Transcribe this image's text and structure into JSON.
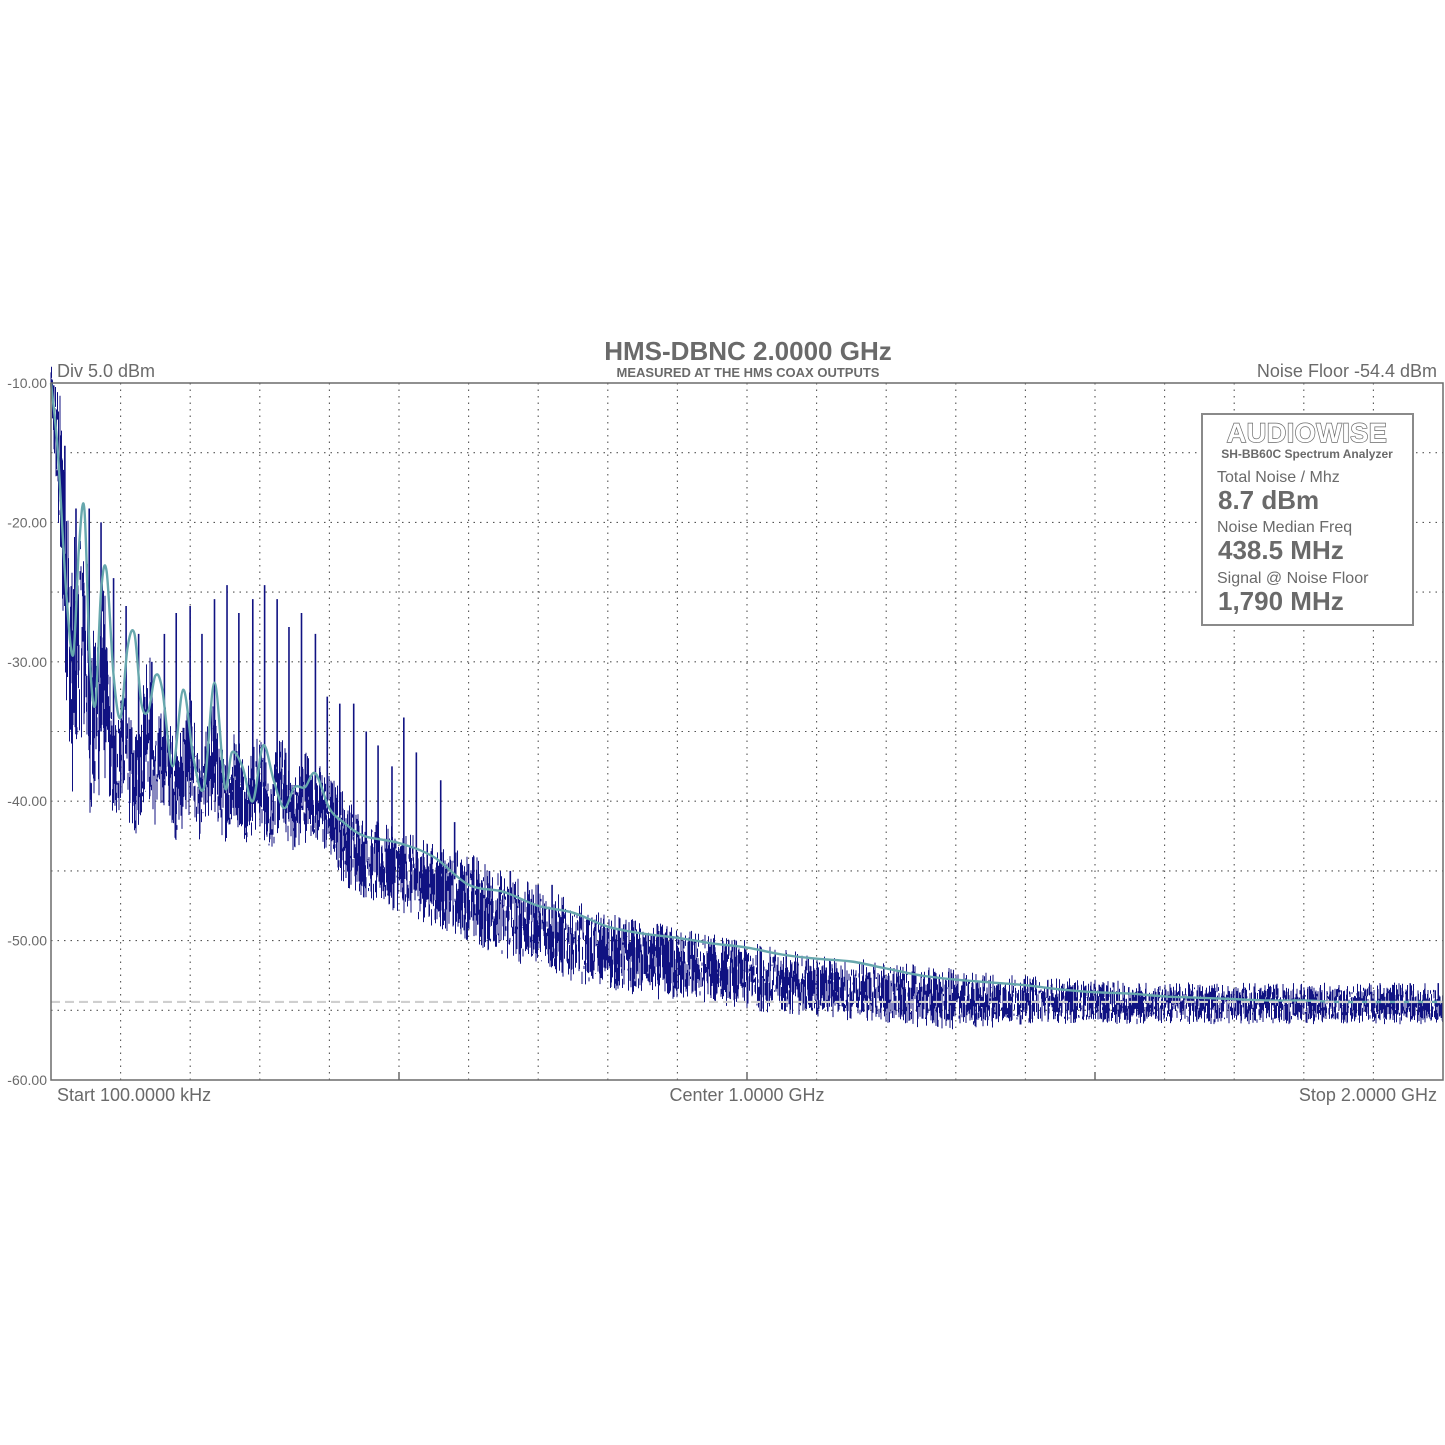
{
  "chart_data": {
    "type": "line",
    "title": "HMS-DBNC 2.0000 GHz",
    "subtitle": "MEASURED AT THE HMS COAX OUTPUTS",
    "div_label": "Div 5.0 dBm",
    "noise_floor_label": "Noise Floor -54.4 dBm",
    "x_labels": {
      "start": "Start 100.0000 kHz",
      "center": "Center 1.0000 GHz",
      "stop": "Stop 2.0000 GHz"
    },
    "xlim_mhz": [
      0.1,
      2000
    ],
    "ylim": [
      -60,
      -10
    ],
    "y_ticks": [
      "-10.00",
      "-20.00",
      "-30.00",
      "-40.00",
      "-50.00",
      "-60.00"
    ],
    "y_tick_values": [
      -10,
      -20,
      -30,
      -40,
      -50,
      -60
    ],
    "grid": true,
    "noise_floor_dbm": -54.4,
    "colors": {
      "spectrum": "#101282",
      "median": "#67a7ad",
      "noise_floor_line": "#cfcfcf",
      "grid": "#555555",
      "frame": "#6b6b6b",
      "text": "#6a6a6a"
    },
    "series": [
      {
        "key": "spectrum",
        "style": "raw trace",
        "x": [
          0.1,
          20,
          30,
          45,
          60,
          75,
          90,
          105,
          120,
          140,
          150,
          165,
          180,
          200,
          215,
          230,
          250,
          265,
          280,
          300,
          315,
          330,
          350,
          365,
          380,
          400,
          420,
          450,
          500,
          550,
          600,
          650,
          700,
          750,
          800,
          850,
          900,
          950,
          1000,
          1100,
          1200,
          1300,
          1400,
          1500,
          1600,
          1700,
          1800,
          1900,
          2000
        ],
        "upper": [
          -8,
          -12,
          -22,
          -18,
          -27,
          -23,
          -34,
          -30,
          -36,
          -27,
          -34,
          -33,
          -36,
          -31,
          -38,
          -32,
          -37,
          -34,
          -37,
          -35,
          -38,
          -35,
          -38,
          -36,
          -37,
          -38,
          -39,
          -41,
          -42,
          -43,
          -43.5,
          -45,
          -46,
          -47,
          -48,
          -48.5,
          -49,
          -49.5,
          -50,
          -51,
          -51.5,
          -52,
          -52.5,
          -52.8,
          -53,
          -53,
          -53,
          -53,
          -53
        ],
        "lower": [
          -12,
          -30,
          -42,
          -35,
          -43,
          -38,
          -42,
          -40,
          -43,
          -40,
          -42,
          -40,
          -43,
          -41,
          -43,
          -41,
          -43,
          -42,
          -43,
          -42,
          -44,
          -42,
          -44,
          -43,
          -43,
          -44,
          -46,
          -47,
          -48,
          -49,
          -50,
          -51.5,
          -52,
          -53,
          -53.5,
          -54,
          -54.5,
          -54.5,
          -55,
          -55.5,
          -56,
          -56.5,
          -56,
          -56,
          -56,
          -56,
          -56,
          -56,
          -56
        ]
      },
      {
        "key": "median",
        "style": "smoothed median",
        "x": [
          0.1,
          10,
          22,
          32,
          40,
          48,
          56,
          64,
          72,
          80,
          90,
          100,
          110,
          120,
          130,
          140,
          150,
          160,
          175,
          190,
          205,
          220,
          235,
          250,
          260,
          275,
          290,
          305,
          320,
          335,
          350,
          365,
          380,
          400,
          420,
          450,
          500,
          550,
          600,
          650,
          700,
          750,
          800,
          850,
          900,
          950,
          1000,
          1050,
          1100,
          1150,
          1200,
          1250,
          1300,
          1350,
          1400,
          1450,
          1500,
          1550,
          1600,
          1650,
          1700,
          1750,
          1800,
          1850,
          1900,
          1950,
          2000
        ],
        "values": [
          -10,
          -15,
          -25,
          -29.5,
          -22,
          -19,
          -30,
          -33,
          -25,
          -23.5,
          -31,
          -34,
          -29,
          -28,
          -33,
          -33.5,
          -31,
          -32,
          -37.5,
          -32,
          -37,
          -39,
          -31.5,
          -39,
          -36.5,
          -37.5,
          -40,
          -36,
          -38.5,
          -40.5,
          -39,
          -39,
          -38,
          -40.5,
          -41.5,
          -42.5,
          -43,
          -44,
          -46,
          -46.5,
          -47.5,
          -48,
          -49,
          -49.5,
          -49.8,
          -50.2,
          -50.5,
          -51,
          -51.3,
          -51.5,
          -52,
          -52.5,
          -52.8,
          -53,
          -53.2,
          -53.5,
          -53.7,
          -53.8,
          -54,
          -54.1,
          -54.2,
          -54.3,
          -54.3,
          -54.4,
          -54.4,
          -54.4,
          -54.4
        ]
      }
    ],
    "harmonic_spurs": {
      "x": [
        20,
        36,
        55,
        72,
        90,
        108,
        126,
        145,
        163,
        180,
        200,
        217,
        235,
        253,
        270,
        290,
        307,
        325,
        342,
        360,
        380,
        397,
        415,
        435,
        453,
        470,
        490,
        507,
        525,
        560,
        580,
        600,
        630,
        660,
        700,
        720,
        760
      ],
      "peaks": [
        -14.5,
        -19,
        -19,
        -20,
        -24,
        -26,
        -28,
        -30,
        -28,
        -26.5,
        -26,
        -28,
        -25.5,
        -24.5,
        -26.5,
        -25.5,
        -24.5,
        -25.5,
        -27.5,
        -26.5,
        -28,
        -32.5,
        -33,
        -33,
        -35,
        -36,
        -37.5,
        -34,
        -36.5,
        -38.5,
        -41.5,
        -44.5,
        -45,
        -45,
        -46,
        -46,
        -48
      ]
    }
  },
  "info_box": {
    "brand": "AUDIOWISE",
    "subtitle": "SH-BB60C Spectrum Analyzer",
    "stats": [
      {
        "label": "Total Noise / Mhz",
        "value": "8.7 dBm"
      },
      {
        "label": "Noise Median Freq",
        "value": "438.5 MHz"
      },
      {
        "label": "Signal @ Noise Floor",
        "value": "1,790 MHz"
      }
    ]
  }
}
